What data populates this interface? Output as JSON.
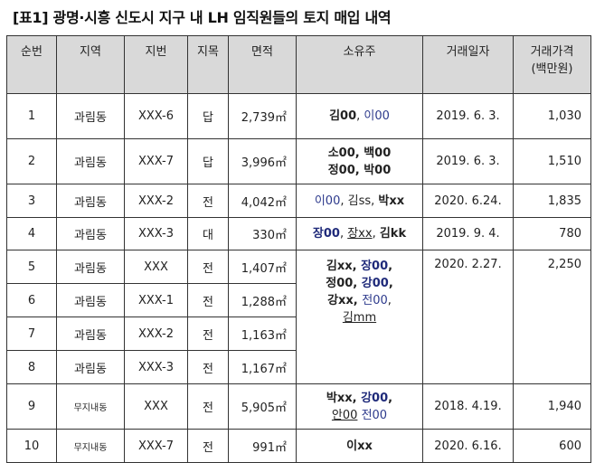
{
  "title": "[표1] 광명·시흥 신도시 지구 내 LH 임직원들의 토지 매입 내역",
  "headers": {
    "no": "순번",
    "area_name": "지역",
    "lot": "지번",
    "category": "지목",
    "size": "면적",
    "owner": "소유주",
    "date": "거래일자",
    "price_l1": "거래가격",
    "price_l2": "(백만원)"
  },
  "unit_sqm": "㎡",
  "rows": [
    {
      "no": "1",
      "area": "과림동",
      "lot": "XXX-6",
      "cat": "답",
      "size": "2,739",
      "owners": [
        [
          {
            "t": "김00",
            "s": "b"
          },
          {
            "t": ", ",
            "s": ""
          },
          {
            "t": "이00",
            "s": "blue"
          }
        ]
      ],
      "date": "2019. 6. 3.",
      "price": "1,030"
    },
    {
      "no": "2",
      "area": "과림동",
      "lot": "XXX-7",
      "cat": "답",
      "size": "3,996",
      "owners": [
        [
          {
            "t": "소00, 백00",
            "s": "b"
          }
        ],
        [
          {
            "t": "정00, 박00",
            "s": "b"
          }
        ]
      ],
      "date": "2019. 6. 3.",
      "price": "1,510"
    },
    {
      "no": "3",
      "area": "과림동",
      "lot": "XXX-2",
      "cat": "전",
      "size": "4,042",
      "owners": [
        [
          {
            "t": "이00",
            "s": "blue"
          },
          {
            "t": ", 김ss, ",
            "s": ""
          },
          {
            "t": "박xx",
            "s": "b"
          }
        ]
      ],
      "date": "2020. 6.24.",
      "price": "1,835"
    },
    {
      "no": "4",
      "area": "과림동",
      "lot": "XXX-3",
      "cat": "대",
      "size": "330",
      "owners": [
        [
          {
            "t": "장00",
            "s": "blueb"
          },
          {
            "t": ", ",
            "s": ""
          },
          {
            "t": "장xx",
            "s": "ul"
          },
          {
            "t": ", ",
            "s": ""
          },
          {
            "t": "김kk",
            "s": "b"
          }
        ]
      ],
      "date": "2019. 9. 4.",
      "price": "780"
    },
    {
      "no": "5",
      "area": "과림동",
      "lot": "XXX",
      "cat": "전",
      "size": "1,407"
    },
    {
      "no": "6",
      "area": "과림동",
      "lot": "XXX-1",
      "cat": "전",
      "size": "1,288"
    },
    {
      "no": "7",
      "area": "과림동",
      "lot": "XXX-2",
      "cat": "전",
      "size": "1,163"
    },
    {
      "no": "8",
      "area": "과림동",
      "lot": "XXX-3",
      "cat": "전",
      "size": "1,167"
    },
    {
      "no": "9",
      "area": "무지내동",
      "lot": "XXX",
      "cat": "전",
      "size": "5,905",
      "owners": [
        [
          {
            "t": "박xx, ",
            "s": "b"
          },
          {
            "t": "강00",
            "s": "blueb"
          },
          {
            "t": ",",
            "s": "b"
          }
        ],
        [
          {
            "t": "안00",
            "s": "ul"
          },
          {
            "t": " ",
            "s": ""
          },
          {
            "t": "전00",
            "s": "blue"
          }
        ]
      ],
      "date": "2018. 4.19.",
      "price": "1,940"
    },
    {
      "no": "10",
      "area": "무지내동",
      "lot": "XXX-7",
      "cat": "전",
      "size": "991",
      "owners": [
        [
          {
            "t": "이xx",
            "s": "b"
          }
        ]
      ],
      "date": "2020. 6.16.",
      "price": "600"
    }
  ],
  "group_5_8": {
    "owners": [
      [
        {
          "t": "김xx, ",
          "s": "b"
        },
        {
          "t": "장00",
          "s": "blueb"
        },
        {
          "t": ",",
          "s": "b"
        }
      ],
      [
        {
          "t": "정00, ",
          "s": "b"
        },
        {
          "t": "강00",
          "s": "blueb"
        },
        {
          "t": ",",
          "s": "b"
        }
      ],
      [
        {
          "t": "강xx, ",
          "s": "b"
        },
        {
          "t": "전00",
          "s": "blue"
        },
        {
          "t": ",",
          "s": ""
        }
      ],
      [
        {
          "t": "김mm",
          "s": "ul"
        }
      ]
    ],
    "date": "2020. 2.27.",
    "price": "2,250"
  }
}
